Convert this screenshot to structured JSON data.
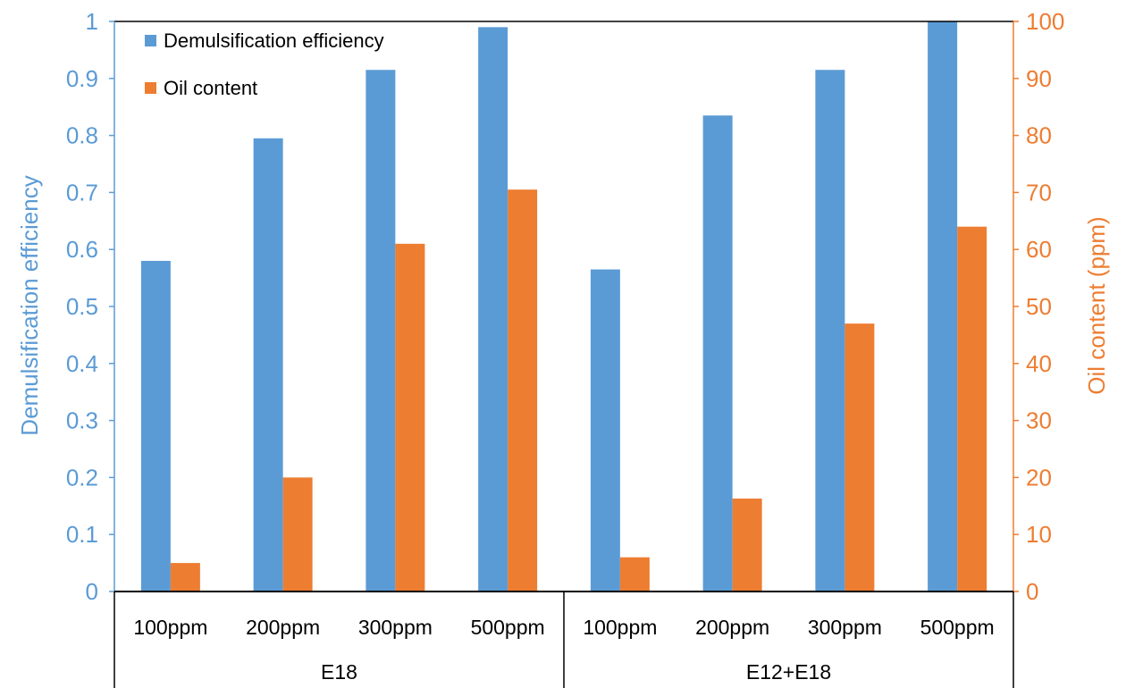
{
  "chart_data": {
    "type": "bar",
    "groups": [
      {
        "name": "E18",
        "categories": [
          "100ppm",
          "200ppm",
          "300ppm",
          "500ppm"
        ]
      },
      {
        "name": "E12+E18",
        "categories": [
          "100ppm",
          "200ppm",
          "300ppm",
          "500ppm"
        ]
      }
    ],
    "series": [
      {
        "name": "Demulsification efficiency",
        "axis": "left",
        "color": "#5B9BD5",
        "values": [
          0.58,
          0.795,
          0.915,
          0.99,
          0.565,
          0.835,
          0.915,
          1.0
        ]
      },
      {
        "name": "Oil content",
        "axis": "right",
        "color": "#ED7D31",
        "values": [
          5,
          20,
          61,
          70.5,
          6,
          16.3,
          47,
          64
        ]
      }
    ],
    "y_left": {
      "label": "Demulsification efficiency",
      "range": [
        0,
        1
      ],
      "ticks": [
        "0",
        "0.1",
        "0.2",
        "0.3",
        "0.4",
        "0.5",
        "0.6",
        "0.7",
        "0.8",
        "0.9",
        "1"
      ],
      "color": "#5B9BD5"
    },
    "y_right": {
      "label": "Oil content (ppm)",
      "range": [
        0,
        100
      ],
      "ticks": [
        "0",
        "10",
        "20",
        "30",
        "40",
        "50",
        "60",
        "70",
        "80",
        "90",
        "100"
      ],
      "color": "#ED7D31"
    },
    "legend": {
      "position": "top-left"
    },
    "grid": false
  }
}
